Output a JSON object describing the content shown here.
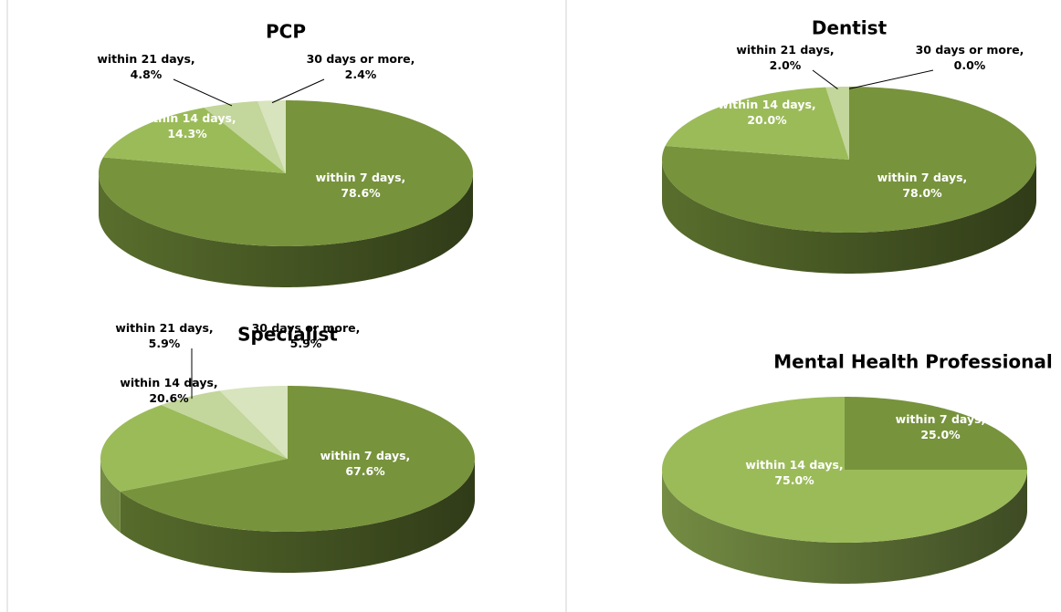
{
  "chart_data": [
    {
      "type": "pie",
      "title": "PCP",
      "categories": [
        "within 7 days,",
        "within 14 days,",
        "within 21 days,",
        "30 days or more,"
      ],
      "values": [
        78.6,
        14.3,
        4.8,
        2.4
      ],
      "value_labels": [
        "78.6%",
        "14.3%",
        "4.8%",
        "2.4%"
      ],
      "colors": [
        "#77933c",
        "#9bbb59",
        "#c3d69b",
        "#d7e4bd"
      ]
    },
    {
      "type": "pie",
      "title": "Dentist",
      "categories": [
        "within 7 days,",
        "within 14 days,",
        "within 21 days,",
        "30 days or more,"
      ],
      "values": [
        78.0,
        20.0,
        2.0,
        0.0
      ],
      "value_labels": [
        "78.0%",
        "20.0%",
        "2.0%",
        "0.0%"
      ],
      "colors": [
        "#77933c",
        "#9bbb59",
        "#c3d69b",
        "#d7e4bd"
      ]
    },
    {
      "type": "pie",
      "title": "Specialist",
      "categories": [
        "within 7 days,",
        "within 14 days,",
        "within 21 days,",
        "30 days or more,"
      ],
      "values": [
        67.6,
        20.6,
        5.9,
        5.9
      ],
      "value_labels": [
        "67.6%",
        "20.6%",
        "5.9%",
        "5.9%"
      ],
      "colors": [
        "#77933c",
        "#9bbb59",
        "#c3d69b",
        "#d7e4bd"
      ]
    },
    {
      "type": "pie",
      "title": "Mental Health Professional",
      "categories": [
        "within 7 days,",
        "within 14 days,"
      ],
      "values": [
        25.0,
        75.0
      ],
      "value_labels": [
        "25.0%",
        "75.0%"
      ],
      "colors": [
        "#77933c",
        "#9bbb59"
      ]
    }
  ]
}
